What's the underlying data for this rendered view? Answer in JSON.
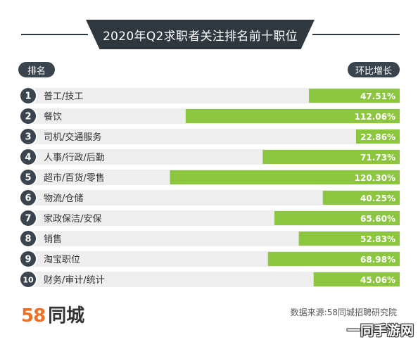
{
  "header": {
    "title": "2020年Q2求职者关注排名前十职位",
    "rank_label": "排名",
    "growth_label": "环比增长"
  },
  "footer": {
    "logo_digits": "58",
    "logo_text": "同城",
    "source": "数据来源:58同城招聘研究院",
    "watermark": "一同手游网"
  },
  "colors": {
    "bar": "#8cc63f",
    "badge": "#3a444e",
    "row_bg": "#eeeeee",
    "dark": "#2f373f"
  },
  "chart_data": {
    "type": "bar",
    "orientation": "horizontal",
    "title": "2020年Q2求职者关注排名前十职位",
    "categories": [
      "普工/技工",
      "餐饮",
      "司机/交通服务",
      "人事/行政/后勤",
      "超市/百货/零售",
      "物流/仓储",
      "家政保洁/安保",
      "销售",
      "淘宝职位",
      "财务/审计/统计"
    ],
    "ranks": [
      "1",
      "2",
      "3",
      "4",
      "5",
      "6",
      "7",
      "8",
      "9",
      "10"
    ],
    "values": [
      47.51,
      112.06,
      22.86,
      71.73,
      120.3,
      40.25,
      65.6,
      52.83,
      68.98,
      45.06
    ],
    "value_labels": [
      "47.51%",
      "112.06%",
      "22.86%",
      "71.73%",
      "120.30%",
      "40.25%",
      "65.60%",
      "52.83%",
      "68.98%",
      "45.06%"
    ],
    "xlim": [
      0,
      140
    ],
    "bar_alignment": "right"
  }
}
